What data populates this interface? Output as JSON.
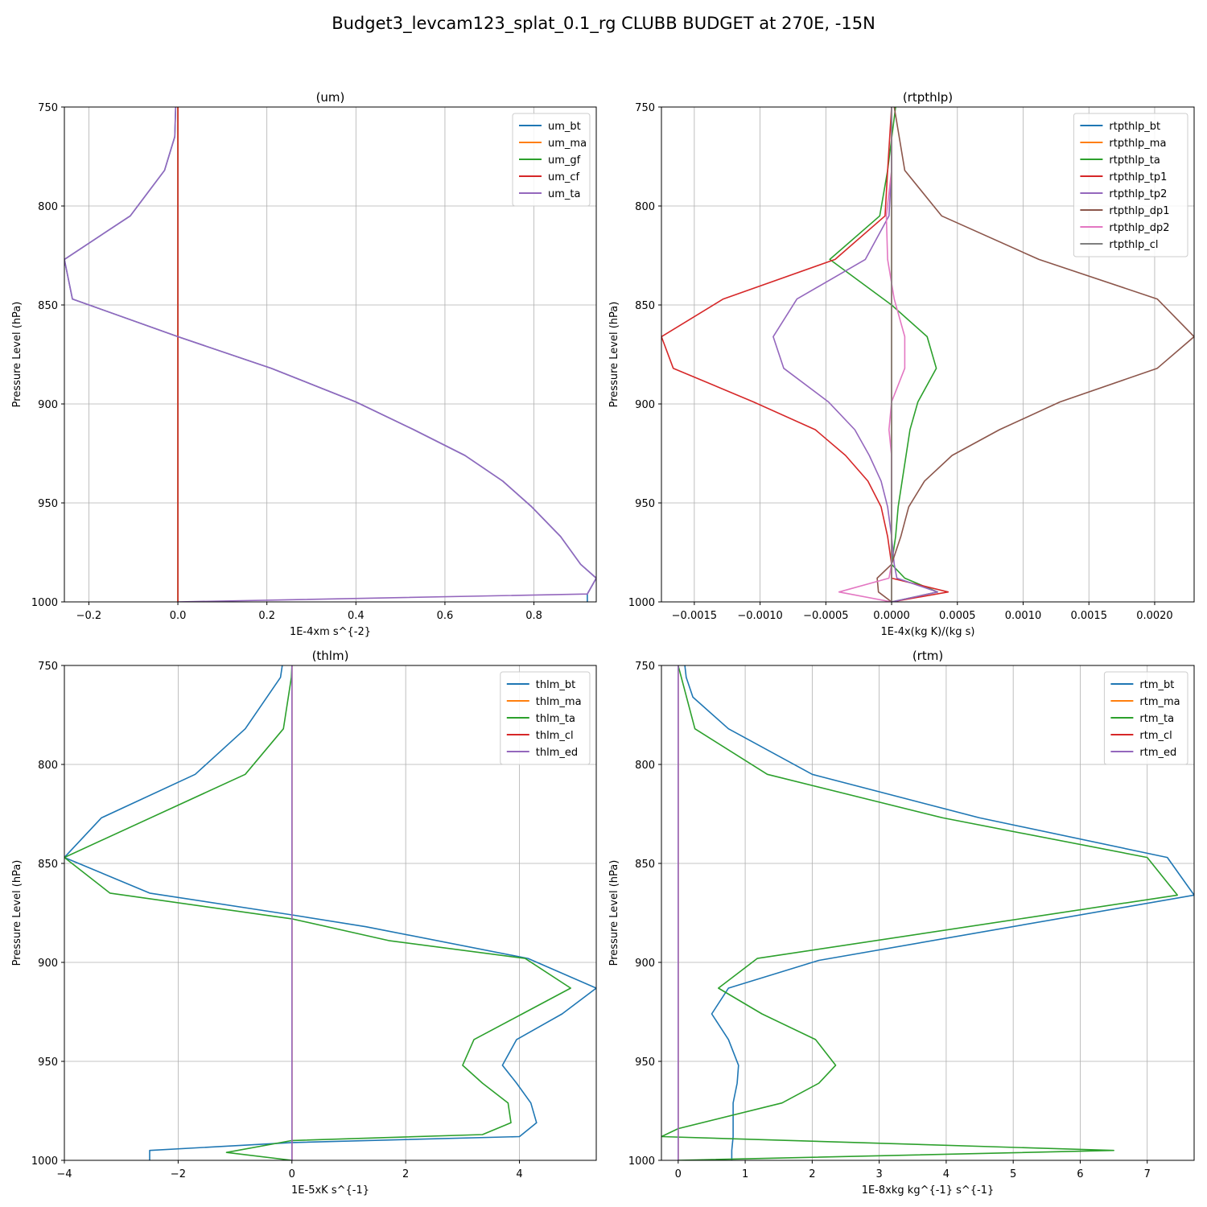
{
  "suptitle": "Budget3_levcam123_splat_0.1_rg CLUBB BUDGET at 270E, -15N",
  "chart_data": [
    {
      "type": "line",
      "title": "(um)",
      "xlabel": "1E-4xm s^{-2}",
      "ylabel": "Pressure Level (hPa)",
      "xlim": [
        -0.255,
        0.94
      ],
      "ylim": [
        1000,
        750
      ],
      "xticks": [
        -0.2,
        0.0,
        0.2,
        0.4,
        0.6,
        0.8
      ],
      "xtick_labels": [
        "−0.2",
        "0.0",
        "0.2",
        "0.4",
        "0.6",
        "0.8"
      ],
      "yticks": [
        750,
        800,
        850,
        900,
        950,
        1000
      ],
      "ytick_labels": [
        "750",
        "800",
        "850",
        "900",
        "950",
        "1000"
      ],
      "grid": true,
      "legend": "top-right",
      "series": [
        {
          "name": "um_bt",
          "color": "#1f77b4",
          "x": [
            -0.005,
            -0.007,
            -0.03,
            -0.107,
            -0.255,
            -0.237,
            0.0,
            0.21,
            0.4,
            0.53,
            0.645,
            0.73,
            0.795,
            0.86,
            0.905,
            0.94,
            0.92,
            0.92
          ],
          "y": [
            750,
            765,
            782,
            805,
            827,
            847,
            866,
            882,
            899,
            913,
            926,
            939,
            952,
            967,
            981,
            988,
            996,
            1000
          ]
        },
        {
          "name": "um_ma",
          "color": "#ff7f0e",
          "x": [
            0,
            0
          ],
          "y": [
            750,
            1000
          ]
        },
        {
          "name": "um_gf",
          "color": "#2ca02c",
          "x": [
            0,
            0
          ],
          "y": [
            750,
            1000
          ]
        },
        {
          "name": "um_cf",
          "color": "#d62728",
          "x": [
            0,
            0
          ],
          "y": [
            750,
            1000
          ]
        },
        {
          "name": "um_ta",
          "color": "#9467bd",
          "x": [
            -0.005,
            -0.007,
            -0.03,
            -0.107,
            -0.255,
            -0.237,
            0.0,
            0.21,
            0.4,
            0.53,
            0.645,
            0.73,
            0.795,
            0.86,
            0.905,
            0.94,
            0.92,
            0.0
          ],
          "y": [
            750,
            765,
            782,
            805,
            827,
            847,
            866,
            882,
            899,
            913,
            926,
            939,
            952,
            967,
            981,
            988,
            996,
            1000
          ]
        }
      ]
    },
    {
      "type": "line",
      "title": "(rtpthlp)",
      "xlabel": "1E-4x(kg K)/(kg s)",
      "ylabel": "Pressure Level (hPa)",
      "xlim": [
        -0.00175,
        0.0023
      ],
      "ylim": [
        1000,
        750
      ],
      "xticks": [
        -0.0015,
        -0.001,
        -0.0005,
        0.0,
        0.0005,
        0.001,
        0.0015,
        0.002
      ],
      "xtick_labels": [
        "−0.0015",
        "−0.0010",
        "−0.0005",
        "0.0000",
        "0.0005",
        "0.0010",
        "0.0015",
        "0.0020"
      ],
      "yticks": [
        750,
        800,
        850,
        900,
        950,
        1000
      ],
      "ytick_labels": [
        "750",
        "800",
        "850",
        "900",
        "950",
        "1000"
      ],
      "grid": true,
      "legend": "top-right",
      "series": [
        {
          "name": "rtpthlp_bt",
          "color": "#1f77b4",
          "x": [
            0,
            0
          ],
          "y": [
            750,
            1000
          ]
        },
        {
          "name": "rtpthlp_ma",
          "color": "#ff7f0e",
          "x": [
            0,
            0
          ],
          "y": [
            750,
            1000
          ]
        },
        {
          "name": "rtpthlp_ta",
          "color": "#2ca02c",
          "x": [
            3e-05,
            -3e-05,
            -9e-05,
            -0.00047,
            0.0,
            0.00027,
            0.00034,
            0.0002,
            0.00014,
            0.00011,
            8e-05,
            5e-05,
            3e-05,
            0.0,
            0.0001,
            0.00035,
            0.0
          ],
          "y": [
            750,
            782,
            805,
            827,
            850,
            866,
            882,
            899,
            913,
            926,
            939,
            952,
            967,
            981,
            988,
            995,
            1000
          ]
        },
        {
          "name": "rtpthlp_tp1",
          "color": "#d62728",
          "x": [
            0.0,
            -3e-05,
            -5e-05,
            -0.00043,
            -0.00128,
            -0.00175,
            -0.00166,
            -0.00105,
            -0.00058,
            -0.00035,
            -0.00018,
            -8e-05,
            -3e-05,
            0.0,
            0.0,
            0.00043,
            0.0
          ],
          "y": [
            750,
            782,
            805,
            827,
            847,
            866,
            882,
            899,
            913,
            926,
            939,
            952,
            967,
            981,
            988,
            995,
            1000
          ]
        },
        {
          "name": "rtpthlp_tp2",
          "color": "#9467bd",
          "x": [
            0.0,
            0.0,
            -2e-05,
            -0.0002,
            -0.00072,
            -0.0009,
            -0.00082,
            -0.00048,
            -0.00028,
            -0.00017,
            -8e-05,
            -3e-05,
            0.0,
            2e-05,
            4e-05,
            0.00035,
            0.0
          ],
          "y": [
            750,
            782,
            805,
            827,
            847,
            866,
            882,
            899,
            913,
            926,
            939,
            952,
            967,
            981,
            988,
            995,
            1000
          ]
        },
        {
          "name": "rtpthlp_dp1",
          "color": "#8c564b",
          "x": [
            2e-05,
            0.0001,
            0.00038,
            0.00112,
            0.00202,
            0.0023,
            0.00202,
            0.00128,
            0.00082,
            0.00046,
            0.00025,
            0.00013,
            7e-05,
            0.0,
            -0.00011,
            -0.0001,
            0.0
          ],
          "y": [
            750,
            782,
            805,
            827,
            847,
            866,
            882,
            899,
            913,
            926,
            939,
            952,
            967,
            981,
            988,
            995,
            1000
          ]
        },
        {
          "name": "rtpthlp_dp2",
          "color": "#e377c2",
          "x": [
            0.0,
            0.0,
            -4e-05,
            -3e-05,
            2e-05,
            0.0001,
            0.0001,
            0.0,
            -2e-05,
            0.0,
            0.0,
            0.0,
            0.0,
            0.0,
            -2e-05,
            -0.0004,
            0.0
          ],
          "y": [
            750,
            782,
            805,
            827,
            847,
            866,
            882,
            899,
            913,
            926,
            939,
            952,
            967,
            981,
            988,
            995,
            1000
          ]
        },
        {
          "name": "rtpthlp_cl",
          "color": "#7f7f7f",
          "x": [
            0,
            0
          ],
          "y": [
            750,
            1000
          ]
        }
      ]
    },
    {
      "type": "line",
      "title": "(thlm)",
      "xlabel": "1E-5xK s^{-1}",
      "ylabel": "Pressure Level (hPa)",
      "xlim": [
        -4.0,
        5.35
      ],
      "ylim": [
        1000,
        750
      ],
      "xticks": [
        -4,
        -2,
        0,
        2,
        4
      ],
      "xtick_labels": [
        "−4",
        "−2",
        "0",
        "2",
        "4"
      ],
      "yticks": [
        750,
        800,
        850,
        900,
        950,
        1000
      ],
      "ytick_labels": [
        "750",
        "800",
        "850",
        "900",
        "950",
        "1000"
      ],
      "grid": true,
      "legend": "top-right",
      "series": [
        {
          "name": "thlm_bt",
          "color": "#1f77b4",
          "x": [
            -0.17,
            -0.2,
            -0.82,
            -1.7,
            -3.35,
            -4.0,
            -2.5,
            0.0,
            1.3,
            4.15,
            5.35,
            4.75,
            3.95,
            3.7,
            3.95,
            4.2,
            4.3,
            4.0,
            0.0,
            -2.5,
            -2.5
          ],
          "y": [
            750,
            756,
            782,
            805,
            827,
            847,
            865,
            876,
            882,
            898,
            913,
            926,
            939,
            952,
            961,
            971,
            981,
            988,
            991,
            995,
            1000
          ]
        },
        {
          "name": "thlm_ma",
          "color": "#ff7f0e",
          "x": [
            0,
            0
          ],
          "y": [
            750,
            1000
          ]
        },
        {
          "name": "thlm_ta",
          "color": "#2ca02c",
          "x": [
            0.0,
            -0.01,
            -0.15,
            -0.82,
            -4.0,
            -3.2,
            0.0,
            1.7,
            4.1,
            4.9,
            4.05,
            3.2,
            3.0,
            3.35,
            3.8,
            3.85,
            3.35,
            0.0,
            -1.15,
            0.0
          ],
          "y": [
            750,
            756,
            782,
            805,
            847,
            865,
            878,
            889,
            898,
            913,
            926,
            939,
            952,
            961,
            971,
            981,
            987,
            990,
            996,
            1000
          ]
        },
        {
          "name": "thlm_cl",
          "color": "#d62728",
          "x": [
            0,
            0
          ],
          "y": [
            750,
            1000
          ]
        },
        {
          "name": "thlm_ed",
          "color": "#9467bd",
          "x": [
            0,
            0
          ],
          "y": [
            750,
            1000
          ]
        }
      ]
    },
    {
      "type": "line",
      "title": "(rtm)",
      "xlabel": "1E-8xkg kg^{-1} s^{-1}",
      "ylabel": "Pressure Level (hPa)",
      "xlim": [
        -0.25,
        7.7
      ],
      "ylim": [
        1000,
        750
      ],
      "xticks": [
        0,
        1,
        2,
        3,
        4,
        5,
        6,
        7
      ],
      "xtick_labels": [
        "0",
        "1",
        "2",
        "3",
        "4",
        "5",
        "6",
        "7"
      ],
      "yticks": [
        750,
        800,
        850,
        900,
        950,
        1000
      ],
      "ytick_labels": [
        "750",
        "800",
        "850",
        "900",
        "950",
        "1000"
      ],
      "grid": true,
      "legend": "top-right",
      "series": [
        {
          "name": "rtm_bt",
          "color": "#1f77b4",
          "x": [
            0.1,
            0.12,
            0.22,
            0.75,
            2.0,
            4.5,
            7.3,
            7.7,
            2.1,
            0.75,
            0.5,
            0.75,
            0.9,
            0.88,
            0.82,
            0.82,
            0.82,
            0.8,
            0.8
          ],
          "y": [
            750,
            756,
            766,
            782,
            805,
            827,
            847,
            866,
            899,
            913,
            926,
            939,
            952,
            961,
            971,
            981,
            988,
            995,
            1000
          ]
        },
        {
          "name": "rtm_ma",
          "color": "#ff7f0e",
          "x": [
            0,
            0
          ],
          "y": [
            750,
            1000
          ]
        },
        {
          "name": "rtm_ta",
          "color": "#2ca02c",
          "x": [
            0.0,
            0.25,
            1.33,
            3.95,
            7.0,
            7.45,
            1.18,
            0.6,
            1.25,
            2.05,
            2.35,
            2.1,
            1.55,
            0.0,
            -0.25,
            6.5,
            0.0
          ],
          "y": [
            750,
            782,
            805,
            827,
            847,
            866,
            898,
            913,
            926,
            939,
            952,
            961,
            971,
            984,
            988,
            995,
            1000
          ]
        },
        {
          "name": "rtm_cl",
          "color": "#d62728",
          "x": [
            0,
            0
          ],
          "y": [
            750,
            1000
          ]
        },
        {
          "name": "rtm_ed",
          "color": "#9467bd",
          "x": [
            0,
            0
          ],
          "y": [
            750,
            1000
          ]
        }
      ]
    }
  ]
}
